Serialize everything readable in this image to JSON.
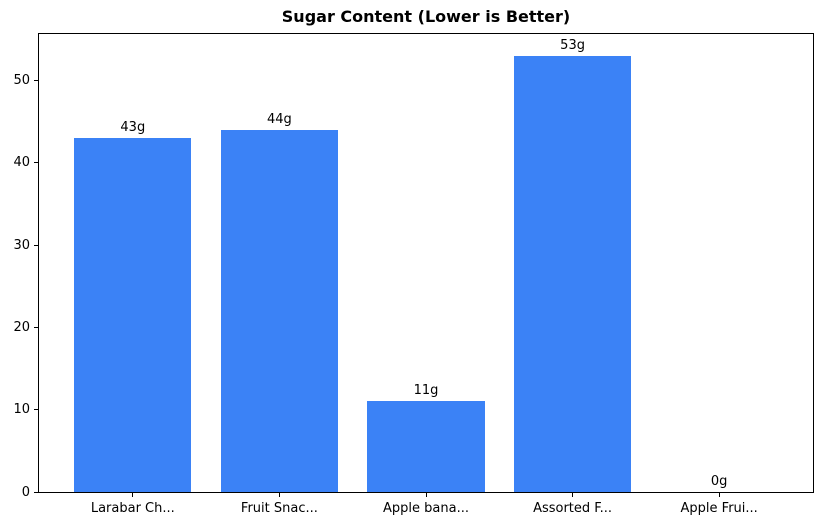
{
  "chart_data": {
    "type": "bar",
    "title": "Sugar Content (Lower is Better)",
    "categories": [
      "Larabar Ch...",
      "Fruit Snac...",
      "Apple bana...",
      "Assorted F...",
      "Apple Frui..."
    ],
    "values": [
      43,
      44,
      11,
      53,
      0
    ],
    "value_labels": [
      "43g",
      "44g",
      "11g",
      "53g",
      "0g"
    ],
    "series_unit": "g",
    "xlabel": "",
    "ylabel": "",
    "yticks": [
      0,
      10,
      20,
      30,
      40,
      50
    ],
    "ylim": [
      0,
      55.65
    ],
    "grid": false,
    "legend_position": "none",
    "bar_color": "#3b82f6",
    "axis_color": "#000000",
    "text_color": "#000000",
    "background_color": "#ffffff"
  }
}
